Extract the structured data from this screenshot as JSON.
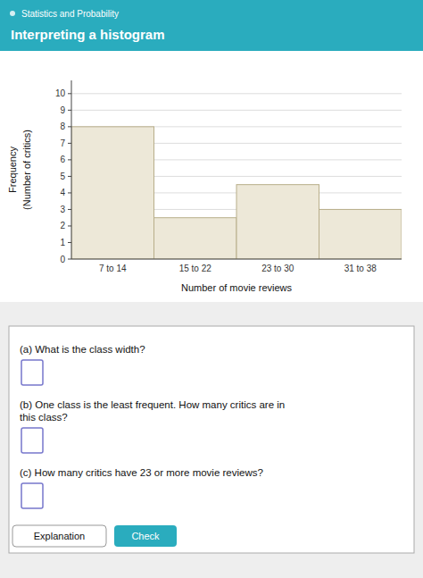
{
  "chart_data": {
    "type": "bar",
    "title": "Interpreting a histogram",
    "subtitle": "Statistics and Probability",
    "categories": [
      "7 to 14",
      "15 to 22",
      "23 to 30",
      "31 to 38"
    ],
    "values": [
      8,
      2.5,
      4.5,
      3
    ],
    "color": "#ede8d8",
    "ylim": [
      0,
      10.8
    ],
    "yticks": [
      0,
      1,
      2,
      3,
      4,
      5,
      6,
      7,
      8,
      9,
      10
    ],
    "grid": true,
    "xlabel": "Number of movie reviews",
    "ylabel": [
      "Frequency",
      "(Number of critics)"
    ]
  },
  "page": {
    "accent_color": "#2aacbe",
    "questions": [
      "(a) What is the class width?",
      "(b) One class is the least frequent. How many critics are in\nthis class?",
      "(c) How many critics have 23 or more movie reviews?"
    ],
    "buttons": [
      "Explanation",
      "Check"
    ]
  }
}
